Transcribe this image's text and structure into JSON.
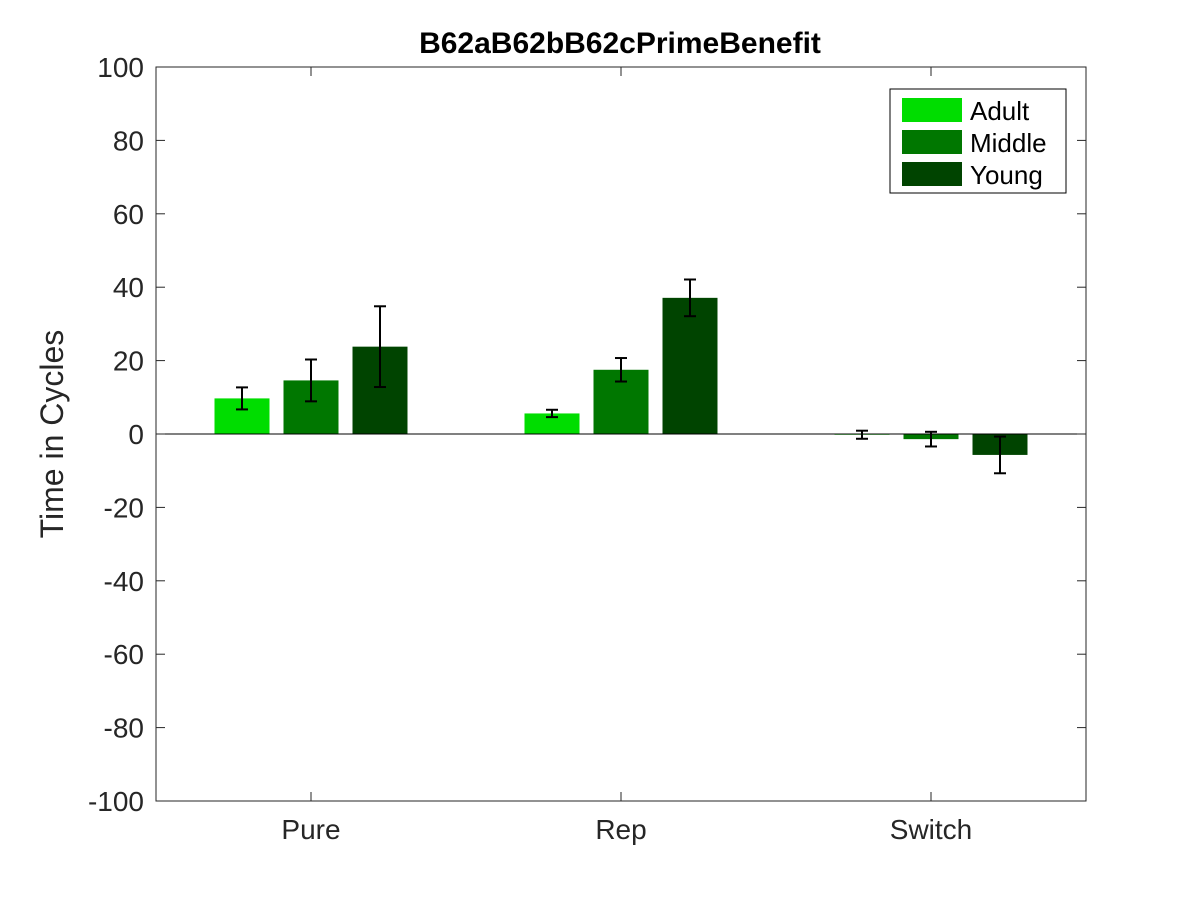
{
  "chart_data": {
    "type": "bar",
    "title": "B62aB62bB62cPrimeBenefit",
    "xlabel": "",
    "ylabel": "Time in Cycles",
    "ylim": [
      -100,
      100
    ],
    "yticks": [
      -100,
      -80,
      -60,
      -40,
      -20,
      0,
      20,
      40,
      60,
      80,
      100
    ],
    "categories": [
      "Pure",
      "Rep",
      "Switch"
    ],
    "series": [
      {
        "name": "Adult",
        "color": "#00dd00",
        "values": [
          9.7,
          5.6,
          -0.2
        ],
        "errors": [
          3.0,
          1.0,
          1.1
        ]
      },
      {
        "name": "Middle",
        "color": "#007700",
        "values": [
          14.6,
          17.5,
          -1.4
        ],
        "errors": [
          5.7,
          3.2,
          2.0
        ]
      },
      {
        "name": "Young",
        "color": "#004400",
        "values": [
          23.8,
          37.1,
          -5.7
        ],
        "errors": [
          11.0,
          5.0,
          5.0
        ]
      }
    ],
    "legend": "top-right",
    "grid": false,
    "zero_line": true
  }
}
